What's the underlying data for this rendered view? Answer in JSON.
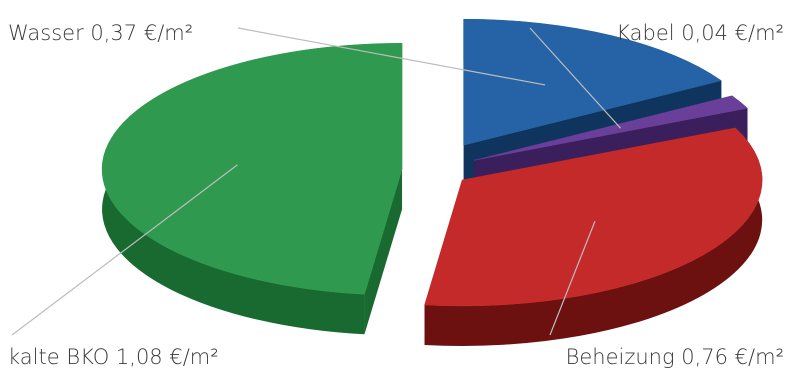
{
  "chart_data": {
    "type": "pie",
    "title": "",
    "unit": "€/m²",
    "slices": [
      {
        "label": "Wasser",
        "value": 0.37,
        "display": "Wasser 0,37 €/m²",
        "color": "#2563a6",
        "dark": "#0f355f"
      },
      {
        "label": "Kabel",
        "value": 0.04,
        "display": "Kabel 0,04 €/m²",
        "color": "#6a3f9a",
        "dark": "#3a1f5c"
      },
      {
        "label": "Beheizung",
        "value": 0.76,
        "display": "Beheizung 0,76 €/m²",
        "color": "#c42a2a",
        "dark": "#6d1010"
      },
      {
        "label": "kalte BKO",
        "value": 1.08,
        "display": "kalte BKO 1,08 €/m²",
        "color": "#2f9a4f",
        "dark": "#186a30"
      }
    ]
  }
}
